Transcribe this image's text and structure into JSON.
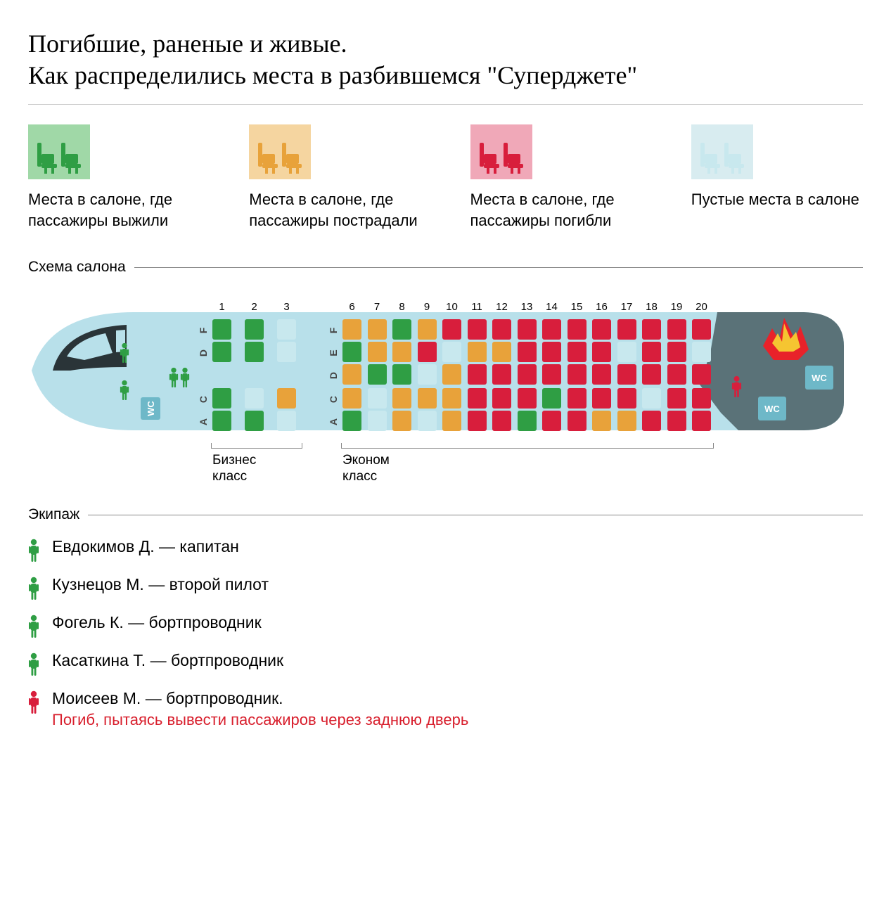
{
  "title": "Погибшие, раненые и живые.\nКак распределились места в разбившемся \"Суперджете\"",
  "colors": {
    "survived": "#2f9e44",
    "survived_bg": "#a0d8a7",
    "injured": "#e8a23a",
    "injured_bg": "#f5d5a0",
    "died": "#d81e3c",
    "died_bg": "#f0a8b8",
    "empty": "#c8e8ee",
    "empty_bg": "#d8ecf0",
    "fuselage": "#b8e0ea",
    "fuselage_dark": "#5a7278",
    "cockpit_dark": "#2a3438",
    "wc_bg": "#6eb8c8",
    "wc_text": "#ffffff",
    "text": "#000000"
  },
  "legend": [
    {
      "key": "survived",
      "label": "Места в салоне, где пассажиры выжили"
    },
    {
      "key": "injured",
      "label": "Места в салоне, где пассажиры пострадали"
    },
    {
      "key": "died",
      "label": "Места в салоне, где пассажиры погибли"
    },
    {
      "key": "empty",
      "label": "Пустые места в салоне"
    }
  ],
  "sections": {
    "cabin": "Схема салона",
    "crew": "Экипаж"
  },
  "class_labels": {
    "business": "Бизнес\nкласс",
    "economy": "Эконом\nкласс"
  },
  "seat_map": {
    "business_rows": [
      1,
      2,
      3
    ],
    "economy_rows": [
      6,
      7,
      8,
      9,
      10,
      11,
      12,
      13,
      14,
      15,
      16,
      17,
      18,
      19,
      20
    ],
    "letters_top": [
      "D",
      "E",
      "F"
    ],
    "letters_top_biz": [
      "D",
      "F"
    ],
    "letters_bot": [
      "A",
      "C"
    ],
    "seats": {
      "1": {
        "F": "survived",
        "D": "survived",
        "C": "survived",
        "A": "survived"
      },
      "2": {
        "F": "survived",
        "D": "survived",
        "C": "empty",
        "A": "survived"
      },
      "3": {
        "F": "empty",
        "D": "empty",
        "C": "injured",
        "A": "empty"
      },
      "6": {
        "F": "injured",
        "E": "survived",
        "D": "injured",
        "C": "injured",
        "A": "survived"
      },
      "7": {
        "F": "injured",
        "E": "injured",
        "D": "survived",
        "C": "empty",
        "A": "empty"
      },
      "8": {
        "F": "survived",
        "E": "injured",
        "D": "survived",
        "C": "injured",
        "A": "injured"
      },
      "9": {
        "F": "injured",
        "E": "died",
        "D": "empty",
        "C": "injured",
        "A": "empty"
      },
      "10": {
        "F": "died",
        "E": "empty",
        "D": "injured",
        "C": "injured",
        "A": "injured"
      },
      "11": {
        "F": "died",
        "E": "injured",
        "D": "died",
        "C": "died",
        "A": "died"
      },
      "12": {
        "F": "died",
        "E": "injured",
        "D": "died",
        "C": "died",
        "A": "died"
      },
      "13": {
        "F": "died",
        "E": "died",
        "D": "died",
        "C": "died",
        "A": "survived"
      },
      "14": {
        "F": "died",
        "E": "died",
        "D": "died",
        "C": "survived",
        "A": "died"
      },
      "15": {
        "F": "died",
        "E": "died",
        "D": "died",
        "C": "died",
        "A": "died"
      },
      "16": {
        "F": "died",
        "E": "died",
        "D": "died",
        "C": "died",
        "A": "injured"
      },
      "17": {
        "F": "died",
        "E": "empty",
        "D": "died",
        "C": "died",
        "A": "injured"
      },
      "18": {
        "F": "died",
        "E": "died",
        "D": "died",
        "C": "empty",
        "A": "died"
      },
      "19": {
        "F": "died",
        "E": "died",
        "D": "died",
        "C": "died",
        "A": "died"
      },
      "20": {
        "F": "died",
        "E": "empty",
        "D": "died",
        "C": "died",
        "A": "died"
      }
    }
  },
  "crew": [
    {
      "name": "Евдокимов Д. — капитан",
      "status": "survived"
    },
    {
      "name": "Кузнецов М. — второй пилот",
      "status": "survived"
    },
    {
      "name": "Фогель К. — бортпроводник",
      "status": "survived"
    },
    {
      "name": "Касаткина Т. — бортпроводник",
      "status": "survived"
    },
    {
      "name": "Моисеев М. — бортпроводник.",
      "status": "died",
      "note": "Погиб, пытаясь вывести пассажиров через заднюю дверь"
    }
  ],
  "wc_label": "WC"
}
